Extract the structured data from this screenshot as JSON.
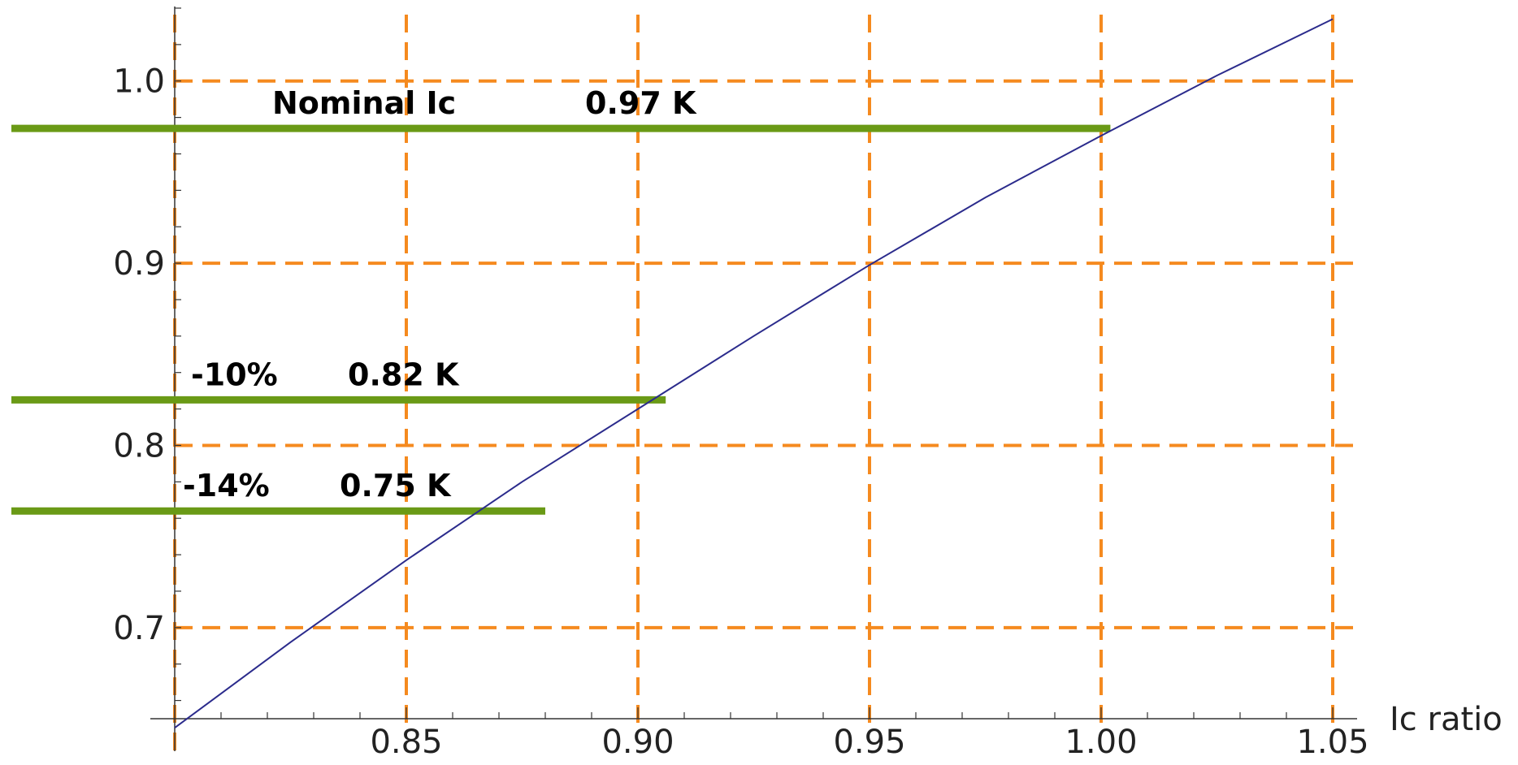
{
  "chart_data": {
    "type": "line",
    "title": "",
    "xlabel": "Ic ratio",
    "ylabel": "",
    "xlim": [
      0.8,
      1.05
    ],
    "ylim": [
      0.65,
      1.04
    ],
    "grid": true,
    "x_ticks": [
      {
        "value": 0.85,
        "label": "0.85"
      },
      {
        "value": 0.9,
        "label": "0.90"
      },
      {
        "value": 0.95,
        "label": "0.95"
      },
      {
        "value": 1.0,
        "label": "1.00"
      },
      {
        "value": 1.05,
        "label": "1.05"
      }
    ],
    "y_ticks": [
      {
        "value": 0.7,
        "label": "0.7"
      },
      {
        "value": 0.8,
        "label": "0.8"
      },
      {
        "value": 0.9,
        "label": "0.9"
      },
      {
        "value": 1.0,
        "label": "1.0"
      }
    ],
    "series": [
      {
        "color": "#2b2b8c",
        "x": [
          0.8,
          0.825,
          0.85,
          0.875,
          0.9,
          0.925,
          0.95,
          0.975,
          1.0,
          1.025,
          1.05
        ],
        "y": [
          0.645,
          0.692,
          0.737,
          0.78,
          0.82,
          0.86,
          0.899,
          0.936,
          0.97,
          1.003,
          1.034
        ]
      }
    ],
    "annotations": [
      {
        "y": 0.974,
        "x_end": 1.002,
        "label_a": "Nominal Ic",
        "label_b": "0.97 K"
      },
      {
        "y": 0.825,
        "x_end": 0.906,
        "label_a": "-10%",
        "label_b": "0.82 K"
      },
      {
        "y": 0.764,
        "x_end": 0.88,
        "label_a": "-14%",
        "label_b": "0.75 K"
      }
    ],
    "colors": {
      "grid": "#f58a1f",
      "reference_line": "#6a9a16",
      "axis": "#333333"
    }
  }
}
